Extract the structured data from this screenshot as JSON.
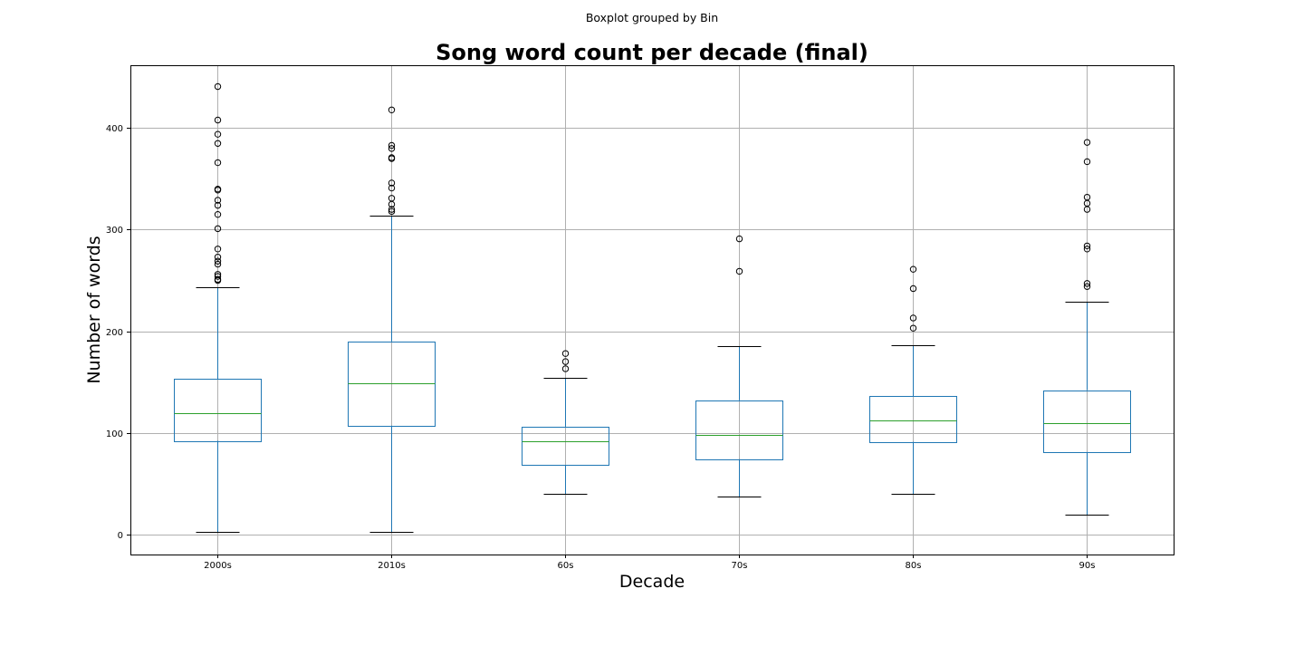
{
  "chart_data": {
    "type": "box",
    "suptitle": "Boxplot grouped by Bin",
    "title": "Song word count per decade (final)",
    "xlabel": "Decade",
    "ylabel": "Number of words",
    "ylim": [
      -20,
      462
    ],
    "yticks": [
      0,
      100,
      200,
      300,
      400
    ],
    "grid": true,
    "categories": [
      "2000s",
      "2010s",
      "60s",
      "70s",
      "80s",
      "90s"
    ],
    "boxes": [
      {
        "category": "2000s",
        "whisker_low": 2,
        "q1": 92,
        "median": 119,
        "q3": 153,
        "whisker_high": 243,
        "outliers": [
          441,
          408,
          394,
          385,
          366,
          340,
          339,
          329,
          324,
          315,
          301,
          281,
          273,
          269,
          266,
          256,
          254,
          251,
          250
        ]
      },
      {
        "category": "2010s",
        "whisker_low": 2,
        "q1": 107,
        "median": 149,
        "q3": 190,
        "whisker_high": 314,
        "outliers": [
          418,
          383,
          380,
          371,
          370,
          346,
          341,
          331,
          325,
          320,
          318
        ]
      },
      {
        "category": "60s",
        "whisker_low": 40,
        "q1": 68,
        "median": 92,
        "q3": 106,
        "whisker_high": 154,
        "outliers": [
          178,
          170,
          163
        ]
      },
      {
        "category": "70s",
        "whisker_low": 37,
        "q1": 74,
        "median": 98,
        "q3": 132,
        "whisker_high": 185,
        "outliers": [
          291,
          259
        ]
      },
      {
        "category": "80s",
        "whisker_low": 40,
        "q1": 91,
        "median": 112,
        "q3": 136,
        "whisker_high": 186,
        "outliers": [
          261,
          242,
          213,
          203
        ]
      },
      {
        "category": "90s",
        "whisker_low": 19,
        "q1": 81,
        "median": 109,
        "q3": 142,
        "whisker_high": 229,
        "outliers": [
          386,
          367,
          332,
          326,
          320,
          284,
          281,
          247,
          244
        ]
      }
    ],
    "colors": {
      "box": "#1f77b4",
      "median": "#2ca02c",
      "cap": "#000000",
      "outlier": "#000000",
      "grid": "#b0b0b0",
      "axis": "#000000"
    }
  }
}
